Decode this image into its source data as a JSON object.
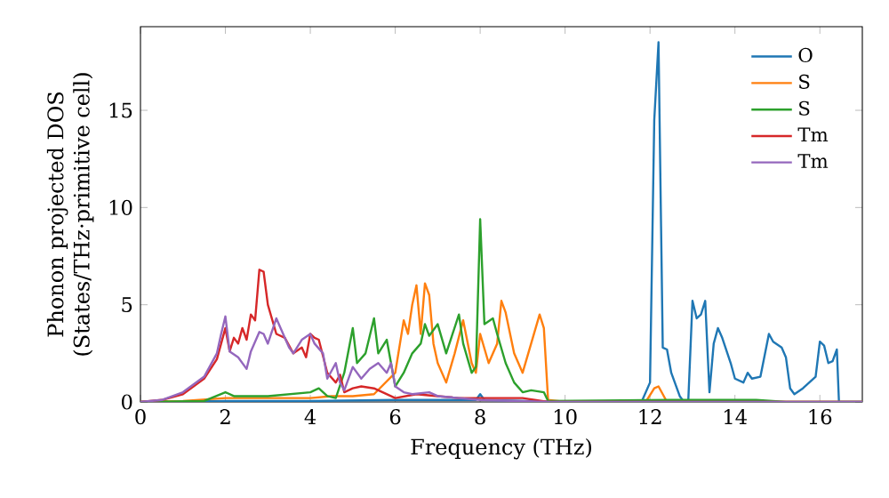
{
  "chart_data": {
    "type": "line",
    "xlabel": "Frequency (THz)",
    "ylabel": "Phonon projected DOS\n(States/THz·primitive cell)",
    "xlim": [
      0,
      17
    ],
    "ylim": [
      0,
      19.3
    ],
    "xticks": [
      0,
      2,
      4,
      6,
      8,
      10,
      12,
      14,
      16
    ],
    "yticks": [
      0,
      5,
      10,
      15
    ],
    "legend": "top right",
    "grid": false,
    "series": [
      {
        "name": "O",
        "color": "#1f77b4",
        "x": [
          0,
          2,
          4,
          6,
          7.9,
          8.0,
          8.1,
          10,
          11.8,
          12.0,
          12.1,
          12.2,
          12.3,
          12.4,
          12.5,
          12.7,
          12.8,
          12.9,
          13.0,
          13.1,
          13.2,
          13.3,
          13.4,
          13.5,
          13.6,
          13.7,
          13.9,
          14.0,
          14.2,
          14.3,
          14.4,
          14.6,
          14.8,
          14.9,
          15.1,
          15.2,
          15.3,
          15.4,
          15.6,
          15.9,
          16.0,
          16.1,
          16.2,
          16.3,
          16.4,
          16.45,
          17
        ],
        "values": [
          0,
          0.05,
          0.05,
          0.1,
          0.1,
          0.4,
          0.1,
          0,
          0,
          1,
          14.5,
          18.5,
          2.8,
          2.7,
          1.5,
          0.3,
          0,
          0,
          5.2,
          4.3,
          4.5,
          5.2,
          0.5,
          3.0,
          3.8,
          3.3,
          2.0,
          1.2,
          1.0,
          1.5,
          1.2,
          1.3,
          3.5,
          3.1,
          2.8,
          2.3,
          0.7,
          0.4,
          0.7,
          1.3,
          3.1,
          2.9,
          2.0,
          2.1,
          2.7,
          0,
          0
        ]
      },
      {
        "name": "S",
        "color": "#ff7f0e",
        "x": [
          0,
          1,
          2,
          3,
          4,
          4.5,
          5.0,
          5.5,
          6.0,
          6.2,
          6.3,
          6.4,
          6.5,
          6.6,
          6.7,
          6.8,
          6.9,
          7.0,
          7.2,
          7.4,
          7.6,
          7.8,
          7.9,
          8.0,
          8.2,
          8.4,
          8.5,
          8.6,
          8.8,
          8.9,
          9.0,
          9.2,
          9.4,
          9.5,
          9.6,
          10,
          11.9,
          12.1,
          12.2,
          12.4,
          17
        ],
        "values": [
          0,
          0.05,
          0.2,
          0.2,
          0.2,
          0.3,
          0.3,
          0.4,
          1.5,
          4.2,
          3.5,
          5.0,
          6.0,
          3.5,
          6.1,
          5.5,
          3.0,
          2.0,
          1.0,
          2.5,
          4.2,
          2.0,
          1.5,
          3.5,
          2.0,
          3.0,
          5.2,
          4.6,
          2.5,
          2.0,
          1.5,
          3.0,
          4.5,
          3.8,
          0.1,
          0,
          0,
          0.7,
          0.8,
          0,
          0
        ]
      },
      {
        "name": "S",
        "color": "#2ca02c",
        "x": [
          0,
          1.5,
          2.0,
          2.2,
          3.0,
          4.0,
          4.2,
          4.4,
          4.6,
          4.8,
          5.0,
          5.1,
          5.3,
          5.5,
          5.6,
          5.8,
          5.9,
          6.0,
          6.2,
          6.4,
          6.6,
          6.7,
          6.8,
          7.0,
          7.2,
          7.5,
          7.6,
          7.8,
          7.9,
          8.0,
          8.1,
          8.3,
          8.4,
          8.6,
          8.8,
          9.0,
          9.2,
          9.5,
          9.6,
          12.5,
          14.5,
          15.2,
          17
        ],
        "values": [
          0,
          0.05,
          0.5,
          0.3,
          0.3,
          0.5,
          0.7,
          0.3,
          0.2,
          1.5,
          3.8,
          2.0,
          2.5,
          4.3,
          2.5,
          3.2,
          2.0,
          0.8,
          1.5,
          2.5,
          3.0,
          4.0,
          3.4,
          4.0,
          2.5,
          4.5,
          3.0,
          1.5,
          1.8,
          9.4,
          4.0,
          4.3,
          3.5,
          2.0,
          1.0,
          0.5,
          0.6,
          0.5,
          0.05,
          0.1,
          0.1,
          0,
          0
        ]
      },
      {
        "name": "Tm",
        "color": "#d62728",
        "x": [
          0,
          0.5,
          1.0,
          1.5,
          1.8,
          1.9,
          2.0,
          2.1,
          2.2,
          2.3,
          2.4,
          2.5,
          2.6,
          2.7,
          2.8,
          2.9,
          3.0,
          3.2,
          3.4,
          3.6,
          3.8,
          3.9,
          4.0,
          4.1,
          4.2,
          4.4,
          4.6,
          4.7,
          4.8,
          5.0,
          5.2,
          5.5,
          6.0,
          6.5,
          7.0,
          7.5,
          8.0,
          9.0,
          9.6,
          17
        ],
        "values": [
          0,
          0.1,
          0.4,
          1.2,
          2.2,
          3.0,
          3.8,
          2.6,
          3.3,
          3.0,
          3.8,
          3.2,
          4.5,
          4.2,
          6.8,
          6.7,
          5.0,
          3.5,
          3.3,
          2.5,
          2.8,
          2.3,
          3.5,
          3.3,
          3.2,
          1.5,
          1.0,
          1.4,
          0.5,
          0.7,
          0.8,
          0.7,
          0.2,
          0.4,
          0.3,
          0.2,
          0.2,
          0.2,
          0,
          0
        ]
      },
      {
        "name": "Tm",
        "color": "#9467bd",
        "x": [
          0,
          0.5,
          1.0,
          1.5,
          1.8,
          1.9,
          2.0,
          2.1,
          2.3,
          2.5,
          2.6,
          2.8,
          2.9,
          3.0,
          3.2,
          3.3,
          3.5,
          3.6,
          3.8,
          4.0,
          4.1,
          4.3,
          4.4,
          4.6,
          4.7,
          4.8,
          5.0,
          5.2,
          5.4,
          5.6,
          5.8,
          5.9,
          6.0,
          6.2,
          6.4,
          6.8,
          7.0,
          8.0,
          9.6,
          17
        ],
        "values": [
          0,
          0.1,
          0.5,
          1.3,
          2.5,
          3.5,
          4.4,
          2.6,
          2.3,
          1.7,
          2.6,
          3.6,
          3.5,
          3.0,
          4.3,
          3.8,
          2.8,
          2.5,
          3.2,
          3.5,
          3.0,
          2.5,
          1.2,
          2.0,
          1.0,
          0.6,
          1.8,
          1.2,
          1.7,
          2.0,
          1.5,
          2.0,
          0.8,
          0.5,
          0.4,
          0.5,
          0.3,
          0.1,
          0,
          0
        ]
      }
    ]
  }
}
